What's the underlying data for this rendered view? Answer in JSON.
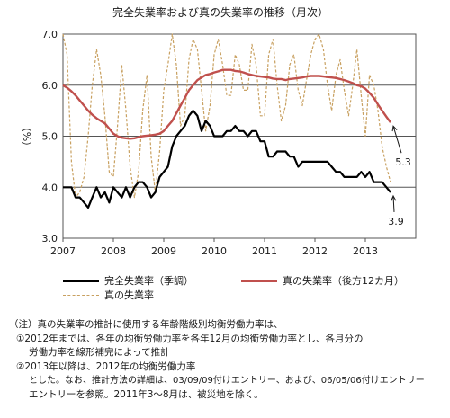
{
  "chart_data": {
    "type": "line",
    "title": "完全失業率および真の失業率の推移（月次）",
    "ylabel": "（%）",
    "xlabel": "",
    "ylim": [
      3.0,
      7.0
    ],
    "y_ticks": [
      "3.0",
      "4.0",
      "5.0",
      "6.0",
      "7.0"
    ],
    "x_ticks": [
      "2007",
      "2008",
      "2009",
      "2010",
      "2011",
      "2012",
      "2013"
    ],
    "x_range": [
      2007,
      2014
    ],
    "grid": "horizontal",
    "legend_position": "bottom",
    "series": [
      {
        "name": "完全失業率（季調）",
        "color": "#000000",
        "style": "solid",
        "x": [
          2007.0,
          2007.083,
          2007.167,
          2007.25,
          2007.333,
          2007.417,
          2007.5,
          2007.583,
          2007.667,
          2007.75,
          2007.833,
          2007.917,
          2008.0,
          2008.083,
          2008.167,
          2008.25,
          2008.333,
          2008.417,
          2008.5,
          2008.583,
          2008.667,
          2008.75,
          2008.833,
          2008.917,
          2009.0,
          2009.083,
          2009.167,
          2009.25,
          2009.333,
          2009.417,
          2009.5,
          2009.583,
          2009.667,
          2009.75,
          2009.833,
          2009.917,
          2010.0,
          2010.083,
          2010.167,
          2010.25,
          2010.333,
          2010.417,
          2010.5,
          2010.583,
          2010.667,
          2010.75,
          2010.833,
          2010.917,
          2011.0,
          2011.083,
          2011.167,
          2011.25,
          2011.333,
          2011.417,
          2011.5,
          2011.583,
          2011.667,
          2011.75,
          2011.833,
          2011.917,
          2012.0,
          2012.083,
          2012.167,
          2012.25,
          2012.333,
          2012.417,
          2012.5,
          2012.583,
          2012.667,
          2012.75,
          2012.833,
          2012.917,
          2013.0,
          2013.083,
          2013.167,
          2013.25,
          2013.333,
          2013.417,
          2013.5
        ],
        "y": [
          4.0,
          4.0,
          4.0,
          3.8,
          3.8,
          3.7,
          3.6,
          3.8,
          4.0,
          3.8,
          3.9,
          3.7,
          4.0,
          3.9,
          3.8,
          4.0,
          3.8,
          4.0,
          4.1,
          4.1,
          4.0,
          3.8,
          3.9,
          4.2,
          4.3,
          4.4,
          4.8,
          5.0,
          5.1,
          5.2,
          5.4,
          5.5,
          5.4,
          5.1,
          5.3,
          5.2,
          5.0,
          5.0,
          5.0,
          5.1,
          5.1,
          5.2,
          5.1,
          5.1,
          5.0,
          5.1,
          5.1,
          4.9,
          4.9,
          4.6,
          4.6,
          4.7,
          4.7,
          4.7,
          4.6,
          4.6,
          4.4,
          4.5,
          4.5,
          4.5,
          4.5,
          4.5,
          4.5,
          4.5,
          4.4,
          4.3,
          4.3,
          4.2,
          4.2,
          4.2,
          4.2,
          4.3,
          4.2,
          4.3,
          4.1,
          4.1,
          4.1,
          4.0,
          3.9
        ]
      },
      {
        "name": "真の失業率（後方12カ月）",
        "color": "#c0504d",
        "style": "solid",
        "x": [
          2007.0,
          2007.083,
          2007.167,
          2007.25,
          2007.333,
          2007.417,
          2007.5,
          2007.583,
          2007.667,
          2007.75,
          2007.833,
          2007.917,
          2008.0,
          2008.083,
          2008.167,
          2008.25,
          2008.333,
          2008.417,
          2008.5,
          2008.583,
          2008.667,
          2008.75,
          2008.833,
          2008.917,
          2009.0,
          2009.083,
          2009.167,
          2009.25,
          2009.333,
          2009.417,
          2009.5,
          2009.583,
          2009.667,
          2009.75,
          2009.833,
          2009.917,
          2010.0,
          2010.083,
          2010.167,
          2010.25,
          2010.333,
          2010.417,
          2010.5,
          2010.583,
          2010.667,
          2010.75,
          2010.833,
          2010.917,
          2011.0,
          2011.083,
          2011.167,
          2011.25,
          2011.333,
          2011.417,
          2011.5,
          2011.583,
          2011.667,
          2011.75,
          2011.833,
          2011.917,
          2012.0,
          2012.083,
          2012.167,
          2012.25,
          2012.333,
          2012.417,
          2012.5,
          2012.583,
          2012.667,
          2012.75,
          2012.833,
          2012.917,
          2013.0,
          2013.083,
          2013.167,
          2013.25,
          2013.333,
          2013.417,
          2013.5
        ],
        "y": [
          6.0,
          5.95,
          5.88,
          5.8,
          5.7,
          5.6,
          5.5,
          5.42,
          5.35,
          5.3,
          5.25,
          5.15,
          5.05,
          5.0,
          4.97,
          4.96,
          4.95,
          4.96,
          4.98,
          5.0,
          5.01,
          5.02,
          5.03,
          5.05,
          5.1,
          5.2,
          5.3,
          5.45,
          5.6,
          5.75,
          5.9,
          6.0,
          6.1,
          6.15,
          6.2,
          6.22,
          6.25,
          6.27,
          6.3,
          6.3,
          6.3,
          6.28,
          6.27,
          6.25,
          6.22,
          6.2,
          6.18,
          6.17,
          6.16,
          6.15,
          6.13,
          6.12,
          6.12,
          6.1,
          6.12,
          6.13,
          6.14,
          6.15,
          6.17,
          6.18,
          6.18,
          6.18,
          6.17,
          6.16,
          6.15,
          6.14,
          6.12,
          6.1,
          6.07,
          6.04,
          6.0,
          5.98,
          5.93,
          5.85,
          5.75,
          5.62,
          5.5,
          5.38,
          5.27
        ]
      },
      {
        "name": "真の失業率",
        "color": "#c8a060",
        "style": "dashed",
        "x": [
          2007.0,
          2007.083,
          2007.167,
          2007.25,
          2007.333,
          2007.417,
          2007.5,
          2007.583,
          2007.667,
          2007.75,
          2007.833,
          2007.917,
          2008.0,
          2008.083,
          2008.167,
          2008.25,
          2008.333,
          2008.417,
          2008.5,
          2008.583,
          2008.667,
          2008.75,
          2008.833,
          2008.917,
          2009.0,
          2009.083,
          2009.167,
          2009.25,
          2009.333,
          2009.417,
          2009.5,
          2009.583,
          2009.667,
          2009.75,
          2009.833,
          2009.917,
          2010.0,
          2010.083,
          2010.167,
          2010.25,
          2010.333,
          2010.417,
          2010.5,
          2010.583,
          2010.667,
          2010.75,
          2010.833,
          2010.917,
          2011.0,
          2011.083,
          2011.167,
          2011.25,
          2011.333,
          2011.417,
          2011.5,
          2011.583,
          2011.667,
          2011.75,
          2011.833,
          2011.917,
          2012.0,
          2012.083,
          2012.167,
          2012.25,
          2012.333,
          2012.417,
          2012.5,
          2012.583,
          2012.667,
          2012.75,
          2012.833,
          2012.917,
          2013.0,
          2013.083,
          2013.167,
          2013.25,
          2013.333,
          2013.417,
          2013.5
        ],
        "y": [
          7.0,
          6.6,
          4.5,
          3.8,
          3.9,
          4.2,
          5.0,
          6.0,
          6.7,
          6.2,
          5.4,
          4.3,
          4.2,
          5.2,
          6.4,
          5.5,
          4.4,
          3.8,
          4.3,
          5.5,
          6.2,
          4.6,
          3.9,
          4.7,
          5.9,
          6.4,
          7.0,
          6.4,
          5.2,
          5.4,
          6.5,
          6.9,
          6.7,
          5.9,
          5.1,
          5.6,
          6.6,
          6.9,
          6.4,
          5.8,
          5.8,
          6.6,
          6.4,
          5.9,
          5.9,
          6.8,
          6.4,
          5.4,
          5.4,
          6.6,
          6.9,
          6.0,
          5.3,
          5.6,
          6.4,
          6.6,
          5.9,
          5.6,
          6.1,
          6.6,
          6.9,
          7.0,
          6.7,
          6.0,
          5.5,
          6.2,
          6.5,
          5.9,
          5.4,
          6.0,
          6.7,
          5.8,
          5.0,
          6.2,
          6.0,
          5.5,
          4.8,
          4.4,
          4.1
        ]
      }
    ],
    "annotations": [
      {
        "text": "5.3",
        "x": 2013.5,
        "y": 5.27,
        "series": 1
      },
      {
        "text": "3.9",
        "x": 2013.5,
        "y": 3.9,
        "series": 0
      }
    ]
  },
  "notes": [
    "（注）真の失業率の推計に使用する年齢階級別均衡労働力率は、",
    "①2012年までは、各年の均衡労働力率を各年12月の均衡労働力率とし、各月分の",
    "労働力率を線形補完によって推計",
    "②2013年以降は、2012年の均衡労働力率",
    "とした。なお、推計方法の詳細は、03/09/09付けエントリー、および、06/05/06付けエントリー",
    "エントリーを参照。2011年3～8月は、被災地を除く。"
  ]
}
